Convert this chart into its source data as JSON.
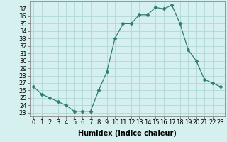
{
  "x": [
    0,
    1,
    2,
    3,
    4,
    5,
    6,
    7,
    8,
    9,
    10,
    11,
    12,
    13,
    14,
    15,
    16,
    17,
    18,
    19,
    20,
    21,
    22,
    23
  ],
  "y": [
    26.5,
    25.5,
    25.0,
    24.5,
    24.0,
    23.2,
    23.2,
    23.2,
    26.0,
    28.5,
    33.0,
    35.0,
    35.0,
    36.2,
    36.2,
    37.2,
    37.0,
    37.5,
    35.0,
    31.5,
    30.0,
    27.5,
    27.0,
    26.5
  ],
  "line_color": "#2e7d6e",
  "marker": "D",
  "marker_size": 2.5,
  "bg_color": "#d6f0f0",
  "grid_color": "#b0d8d8",
  "xlabel": "Humidex (Indice chaleur)",
  "xlim": [
    -0.5,
    23.5
  ],
  "ylim": [
    22.5,
    38.0
  ],
  "xtick_labels": [
    "0",
    "1",
    "2",
    "3",
    "4",
    "5",
    "6",
    "7",
    "8",
    "9",
    "10",
    "11",
    "12",
    "13",
    "14",
    "15",
    "16",
    "17",
    "18",
    "19",
    "20",
    "21",
    "22",
    "23"
  ],
  "yticks": [
    23,
    24,
    25,
    26,
    27,
    28,
    29,
    30,
    31,
    32,
    33,
    34,
    35,
    36,
    37
  ],
  "label_fontsize": 7,
  "tick_fontsize": 6
}
